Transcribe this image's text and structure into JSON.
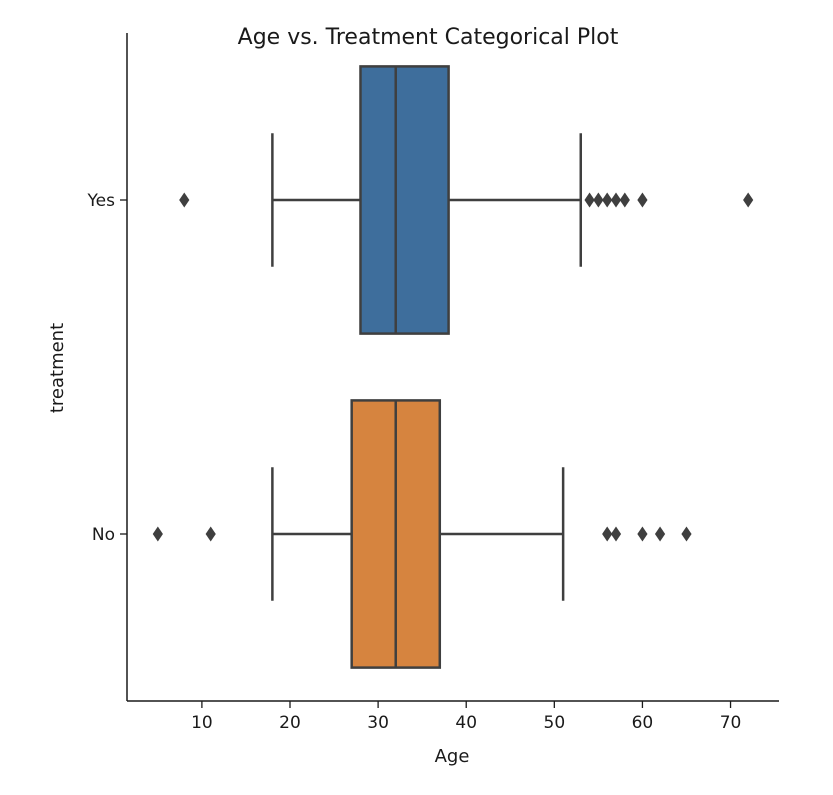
{
  "chart_data": {
    "type": "boxplot",
    "orientation": "horizontal",
    "title": "Age vs. Treatment Categorical Plot",
    "xlabel": "Age",
    "ylabel": "treatment",
    "xlim": [
      1.5,
      75.5
    ],
    "xticks": [
      10,
      20,
      30,
      40,
      50,
      60,
      70
    ],
    "categories": [
      "Yes",
      "No"
    ],
    "series": [
      {
        "name": "Yes",
        "color": "#3e6e9c",
        "whisker_low": 18,
        "q1": 28,
        "median": 32,
        "q3": 38,
        "whisker_high": 53,
        "outliers": [
          8,
          54,
          55,
          56,
          57,
          58,
          60,
          72
        ]
      },
      {
        "name": "No",
        "color": "#d6843f",
        "whisker_low": 18,
        "q1": 27,
        "median": 32,
        "q3": 37,
        "whisker_high": 51,
        "outliers": [
          5,
          11,
          56,
          57,
          60,
          62,
          65
        ]
      }
    ],
    "grid": false,
    "legend": "none"
  }
}
